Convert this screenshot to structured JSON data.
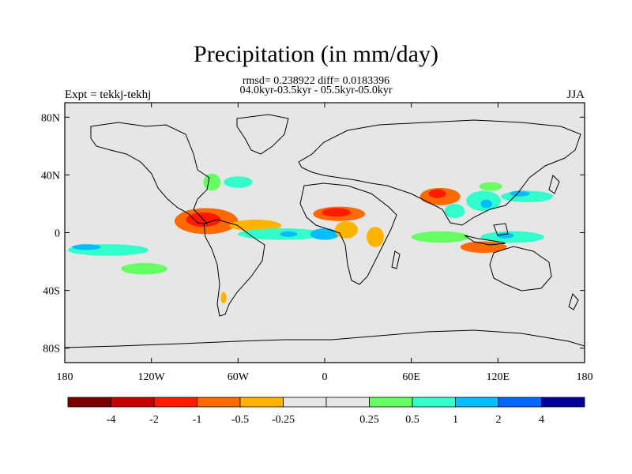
{
  "title": "Precipitation (in mm/day)",
  "subtitle_line1": "rmsd= 0.238922 diff= 0.0183396",
  "subtitle_line2": "04.0kyr-03.5kyr - 05.5kyr-05.0kyr",
  "left_label": "Expt = tekkj-tekhj",
  "right_label": "JJA",
  "map": {
    "projection": "cylindrical-equidistant",
    "lon_range": [
      -180,
      180
    ],
    "lat_range": [
      -90,
      90
    ],
    "background_color": "#e6e6e6",
    "x_ticks": [
      {
        "lon": -180,
        "label": "180"
      },
      {
        "lon": -120,
        "label": "120W"
      },
      {
        "lon": -60,
        "label": "60W"
      },
      {
        "lon": 0,
        "label": "0"
      },
      {
        "lon": 60,
        "label": "60E"
      },
      {
        "lon": 120,
        "label": "120E"
      },
      {
        "lon": 180,
        "label": "180"
      }
    ],
    "y_ticks": [
      {
        "lat": 80,
        "label": "80N"
      },
      {
        "lat": 40,
        "label": "40N"
      },
      {
        "lat": 0,
        "label": "0"
      },
      {
        "lat": -40,
        "label": "40S"
      },
      {
        "lat": -80,
        "label": "80S"
      }
    ]
  },
  "colorbar": {
    "colors": [
      "#7a0000",
      "#c40000",
      "#ff1a00",
      "#ff6a00",
      "#ffb400",
      "#e6e6e6",
      "#e6e6e6",
      "#66ff66",
      "#33ffcc",
      "#00bfff",
      "#0066ff",
      "#000099"
    ],
    "labels": [
      "-4",
      "-2",
      "-1",
      "-0.5",
      "-0.25",
      "0.25",
      "0.5",
      "1",
      "2",
      "4"
    ]
  },
  "anomaly_regions": [
    {
      "name": "central-america-dry",
      "lon": -82,
      "lat": 8,
      "rx": 22,
      "ry": 9,
      "color": "#ff6a00"
    },
    {
      "name": "central-america-core",
      "lon": -84,
      "lat": 9,
      "rx": 12,
      "ry": 5,
      "color": "#ff1a00"
    },
    {
      "name": "tropical-atlantic-dry",
      "lon": -48,
      "lat": 5,
      "rx": 18,
      "ry": 4,
      "color": "#ffb400"
    },
    {
      "name": "tropical-atlantic-wet",
      "lon": -30,
      "lat": -1,
      "rx": 30,
      "ry": 4,
      "color": "#33ffcc"
    },
    {
      "name": "atlantic-blue",
      "lon": -25,
      "lat": -1,
      "rx": 6,
      "ry": 2,
      "color": "#00bfff"
    },
    {
      "name": "gulf-guinea-wet",
      "lon": 0,
      "lat": -1,
      "rx": 10,
      "ry": 4,
      "color": "#00bfff"
    },
    {
      "name": "sahel-dry",
      "lon": 10,
      "lat": 13,
      "rx": 18,
      "ry": 5,
      "color": "#ff6a00"
    },
    {
      "name": "sahel-core",
      "lon": 8,
      "lat": 14,
      "rx": 10,
      "ry": 3,
      "color": "#ff1a00"
    },
    {
      "name": "west-africa-dry",
      "lon": 15,
      "lat": 2,
      "rx": 8,
      "ry": 6,
      "color": "#ffb400"
    },
    {
      "name": "east-africa-dry",
      "lon": 35,
      "lat": -3,
      "rx": 6,
      "ry": 7,
      "color": "#ffb400"
    },
    {
      "name": "india-dry",
      "lon": 80,
      "lat": 25,
      "rx": 14,
      "ry": 6,
      "color": "#ff6a00"
    },
    {
      "name": "india-core",
      "lon": 78,
      "lat": 27,
      "rx": 6,
      "ry": 3,
      "color": "#ff1a00"
    },
    {
      "name": "bay-bengal-wet",
      "lon": 90,
      "lat": 15,
      "rx": 7,
      "ry": 5,
      "color": "#33ffcc"
    },
    {
      "name": "se-asia-wet",
      "lon": 110,
      "lat": 22,
      "rx": 12,
      "ry": 7,
      "color": "#33ffcc"
    },
    {
      "name": "se-asia-blue",
      "lon": 112,
      "lat": 20,
      "rx": 4,
      "ry": 3,
      "color": "#00bfff"
    },
    {
      "name": "nw-pacific-wet",
      "lon": 140,
      "lat": 25,
      "rx": 18,
      "ry": 4,
      "color": "#33ffcc"
    },
    {
      "name": "nw-pacific-blue",
      "lon": 135,
      "lat": 27,
      "rx": 7,
      "ry": 2,
      "color": "#00bfff"
    },
    {
      "name": "equatorial-indian-wet",
      "lon": 80,
      "lat": -3,
      "rx": 20,
      "ry": 4,
      "color": "#66ff66"
    },
    {
      "name": "indian-ocean-dry",
      "lon": 110,
      "lat": -10,
      "rx": 16,
      "ry": 4,
      "color": "#ff6a00"
    },
    {
      "name": "maritime-wet",
      "lon": 130,
      "lat": -3,
      "rx": 22,
      "ry": 4,
      "color": "#33ffcc"
    },
    {
      "name": "maritime-blue",
      "lon": 125,
      "lat": -2,
      "rx": 6,
      "ry": 2,
      "color": "#00bfff"
    },
    {
      "name": "south-pacific-wet",
      "lon": -150,
      "lat": -12,
      "rx": 28,
      "ry": 4,
      "color": "#33ffcc"
    },
    {
      "name": "south-pacific-blue",
      "lon": -165,
      "lat": -10,
      "rx": 10,
      "ry": 2,
      "color": "#00bfff"
    },
    {
      "name": "south-pacific-tail",
      "lon": -125,
      "lat": -25,
      "rx": 16,
      "ry": 4,
      "color": "#66ff66"
    },
    {
      "name": "china-green",
      "lon": 115,
      "lat": 32,
      "rx": 8,
      "ry": 3,
      "color": "#66ff66"
    },
    {
      "name": "us-east-green",
      "lon": -78,
      "lat": 35,
      "rx": 6,
      "ry": 6,
      "color": "#66ff66"
    },
    {
      "name": "north-atlantic-green",
      "lon": -60,
      "lat": 35,
      "rx": 10,
      "ry": 4,
      "color": "#33ffcc"
    },
    {
      "name": "patagonia-dry",
      "lon": -70,
      "lat": -45,
      "rx": 2,
      "ry": 4,
      "color": "#ffb400"
    }
  ]
}
